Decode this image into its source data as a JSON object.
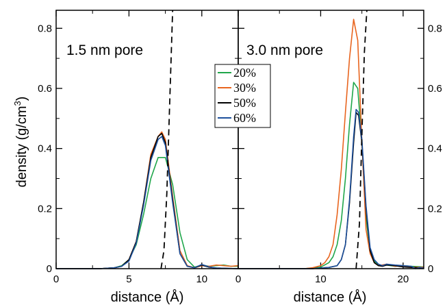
{
  "chart_data": {
    "type": "line",
    "ylabel": "density (g/cm",
    "ylabel_sup": "3",
    "ylabel_close": ")",
    "ylim": [
      0,
      0.86
    ],
    "yticks": [
      0,
      0.2,
      0.4,
      0.6,
      0.8
    ],
    "ytick_labels": [
      "0",
      "0.2",
      "0.4",
      "0.6",
      "0.8"
    ],
    "legend": {
      "placement": "center",
      "entries": [
        {
          "label": "20%",
          "color": "#1fa64a"
        },
        {
          "label": "30%",
          "color": "#e8641e"
        },
        {
          "label": "50%",
          "color": "#000000"
        },
        {
          "label": "60%",
          "color": "#1c4f9c"
        }
      ]
    },
    "panels": [
      {
        "label": "1.5 nm pore",
        "xlabel": "distance (Å)",
        "xlim": [
          0,
          12.5
        ],
        "xticks": [
          0,
          5,
          10
        ],
        "xtick_labels": [
          "0",
          "5",
          "10"
        ],
        "series": [
          {
            "name": "20%",
            "color": "#1fa64a",
            "x": [
              0,
              3.0,
              4.0,
              4.5,
              5.0,
              5.5,
              6.0,
              6.5,
              7.0,
              7.5,
              8.0,
              8.5,
              9.0,
              9.5,
              10.0,
              10.5,
              11.0,
              11.5,
              12.0,
              12.5
            ],
            "y": [
              0,
              0,
              0.003,
              0.01,
              0.03,
              0.08,
              0.18,
              0.3,
              0.37,
              0.37,
              0.28,
              0.12,
              0.03,
              0.005,
              0.012,
              0.008,
              0.01,
              0.012,
              0.008,
              0.008
            ]
          },
          {
            "name": "30%",
            "color": "#e8641e",
            "x": [
              0,
              3.0,
              4.0,
              4.5,
              5.0,
              5.5,
              6.0,
              6.5,
              7.0,
              7.25,
              7.5,
              8.0,
              8.5,
              9.0,
              9.5,
              10.0,
              10.5,
              11.0,
              11.5,
              12.0,
              12.5
            ],
            "y": [
              0,
              0,
              0.003,
              0.008,
              0.03,
              0.09,
              0.22,
              0.38,
              0.44,
              0.455,
              0.43,
              0.24,
              0.06,
              0.01,
              0.003,
              0.01,
              0.008,
              0.012,
              0.01,
              0.008,
              0.01
            ]
          },
          {
            "name": "50%",
            "color": "#000000",
            "x": [
              0,
              3.0,
              4.0,
              4.5,
              5.0,
              5.5,
              6.0,
              6.5,
              7.0,
              7.25,
              7.5,
              8.0,
              8.5,
              9.0,
              9.5,
              10.0,
              10.5,
              11.0,
              12.5
            ],
            "y": [
              0,
              0,
              0.003,
              0.008,
              0.03,
              0.09,
              0.22,
              0.37,
              0.44,
              0.45,
              0.42,
              0.23,
              0.05,
              0.008,
              0.003,
              0.012,
              0.005,
              0.002,
              0.0
            ]
          },
          {
            "name": "60%",
            "color": "#1c4f9c",
            "x": [
              0,
              3.0,
              4.0,
              4.5,
              5.0,
              5.5,
              6.0,
              6.5,
              7.0,
              7.25,
              7.5,
              8.0,
              8.5,
              9.0,
              9.5,
              10.0,
              10.5,
              11.0,
              12.5
            ],
            "y": [
              0,
              0,
              0.003,
              0.008,
              0.025,
              0.085,
              0.21,
              0.36,
              0.43,
              0.44,
              0.41,
              0.22,
              0.05,
              0.008,
              0.003,
              0.014,
              0.006,
              0.002,
              0.0
            ]
          },
          {
            "name": "",
            "color": "#000000",
            "dashed": true,
            "x": [
              7.2,
              7.4,
              7.6,
              8.0
            ],
            "y": [
              0.0,
              0.06,
              0.25,
              0.86
            ]
          }
        ]
      },
      {
        "label": "3.0 nm pore",
        "xlabel": "distance (Å)",
        "xlim": [
          0,
          22.5
        ],
        "xticks": [
          0,
          10,
          20
        ],
        "xtick_labels": [
          "0",
          "10",
          "20"
        ],
        "series": [
          {
            "name": "20%",
            "color": "#1fa64a",
            "x": [
              0,
              8.0,
              9.0,
              10.0,
              11.0,
              11.5,
              12.0,
              12.5,
              13.0,
              13.5,
              14.0,
              14.5,
              15.0,
              15.5,
              16.0,
              16.5,
              17.0,
              18.0,
              19.0,
              20.0,
              21.0,
              22.5
            ],
            "y": [
              0,
              0,
              0.002,
              0.005,
              0.02,
              0.04,
              0.08,
              0.16,
              0.3,
              0.48,
              0.62,
              0.6,
              0.42,
              0.17,
              0.06,
              0.025,
              0.01,
              0.012,
              0.008,
              0.01,
              0.008,
              0.006
            ]
          },
          {
            "name": "30%",
            "color": "#e8641e",
            "x": [
              0,
              8.0,
              9.0,
              10.0,
              10.5,
              11.0,
              11.5,
              12.0,
              12.5,
              13.0,
              13.5,
              14.0,
              14.5,
              15.0,
              15.5,
              16.0,
              16.5,
              17.0,
              18.0,
              19.0,
              20.0,
              21.0,
              22.5
            ],
            "y": [
              0,
              0,
              0.003,
              0.01,
              0.02,
              0.04,
              0.08,
              0.18,
              0.33,
              0.52,
              0.7,
              0.83,
              0.76,
              0.42,
              0.13,
              0.05,
              0.02,
              0.01,
              0.015,
              0.008,
              0.01,
              0.005,
              0.005
            ]
          },
          {
            "name": "50%",
            "color": "#000000",
            "x": [
              0,
              9.0,
              10.0,
              11.0,
              12.0,
              12.5,
              13.0,
              13.5,
              14.0,
              14.3,
              14.6,
              15.0,
              15.5,
              16.0,
              16.5,
              17.0,
              17.5,
              18.0,
              19.0,
              20.0,
              21.0,
              22.5
            ],
            "y": [
              0,
              0,
              0.002,
              0.004,
              0.01,
              0.03,
              0.08,
              0.22,
              0.42,
              0.52,
              0.51,
              0.42,
              0.2,
              0.06,
              0.02,
              0.01,
              0.008,
              0.012,
              0.01,
              0.006,
              0.004,
              0.002
            ]
          },
          {
            "name": "60%",
            "color": "#1c4f9c",
            "x": [
              0,
              9.0,
              10.0,
              11.0,
              12.0,
              12.5,
              13.0,
              13.5,
              14.0,
              14.3,
              14.6,
              15.0,
              15.5,
              16.0,
              16.5,
              17.0,
              17.5,
              18.0,
              19.0,
              20.0,
              21.0,
              21.5,
              22.0,
              22.5
            ],
            "y": [
              0,
              0,
              0.002,
              0.004,
              0.01,
              0.03,
              0.08,
              0.23,
              0.44,
              0.53,
              0.52,
              0.43,
              0.21,
              0.07,
              0.03,
              0.015,
              0.01,
              0.015,
              0.012,
              0.01,
              0.008,
              0.0,
              0.004,
              0.002
            ]
          },
          {
            "name": "",
            "color": "#000000",
            "dashed": true,
            "x": [
              14.3,
              14.7,
              15.0,
              15.3,
              15.6
            ],
            "y": [
              0.0,
              0.15,
              0.45,
              0.72,
              0.86
            ]
          }
        ]
      }
    ]
  }
}
